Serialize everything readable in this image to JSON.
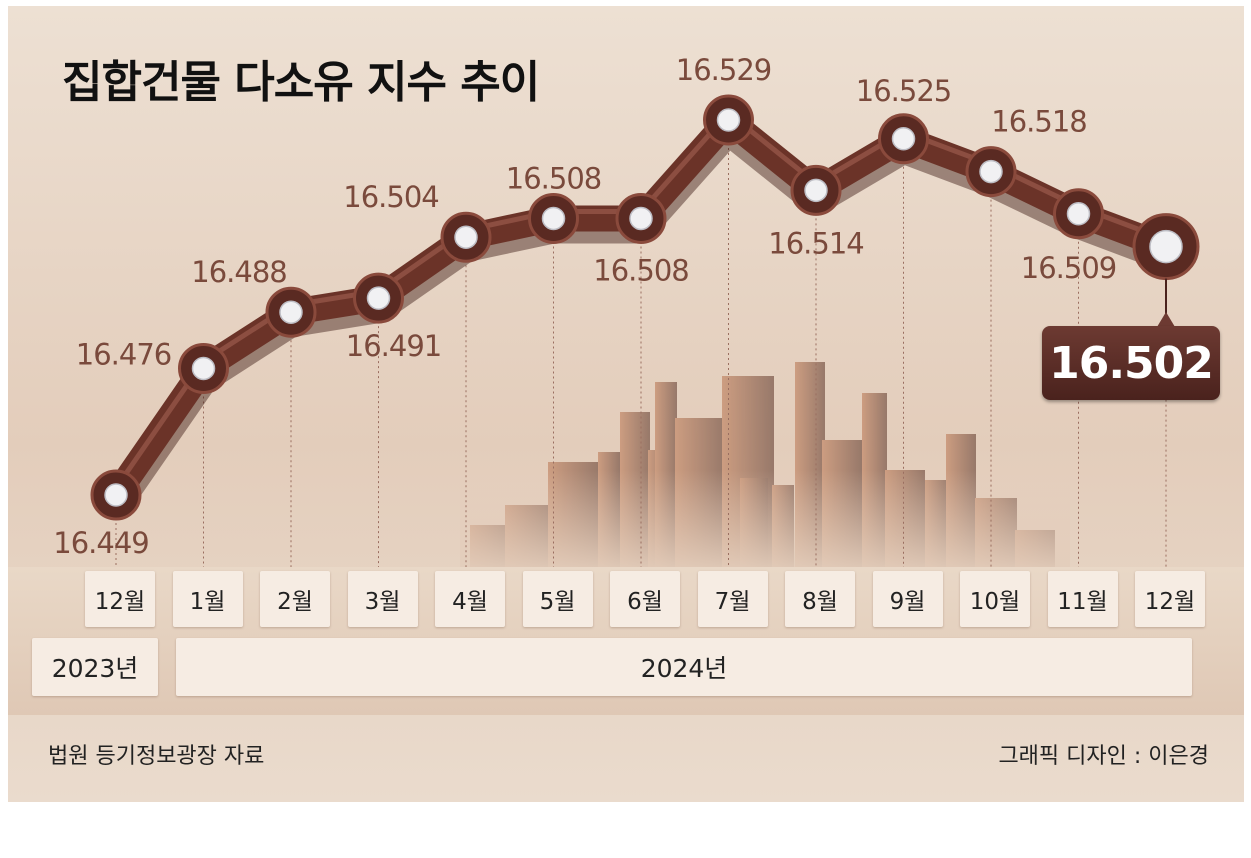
{
  "chart_data": {
    "type": "line",
    "title": "집합건물 다소유 지수 추이",
    "categories": [
      "12월",
      "1월",
      "2월",
      "3월",
      "4월",
      "5월",
      "6월",
      "7월",
      "8월",
      "9월",
      "10월",
      "11월",
      "12월"
    ],
    "values": [
      16.449,
      16.476,
      16.488,
      16.491,
      16.504,
      16.508,
      16.508,
      16.529,
      16.514,
      16.525,
      16.518,
      16.509,
      16.502
    ],
    "value_labels": [
      "16.449",
      "16.476",
      "16.488",
      "16.491",
      "16.504",
      "16.508",
      "16.508",
      "16.529",
      "16.514",
      "16.525",
      "16.518",
      "16.509",
      "16.502"
    ],
    "years": [
      "2023년",
      "2024년"
    ],
    "highlight_label": "16.502",
    "source": "법원 등기정보광장 자료",
    "credit": "그래픽 디자인 : 이은경",
    "line_color": "#6b3328",
    "label_color": "#7a4a3c"
  }
}
